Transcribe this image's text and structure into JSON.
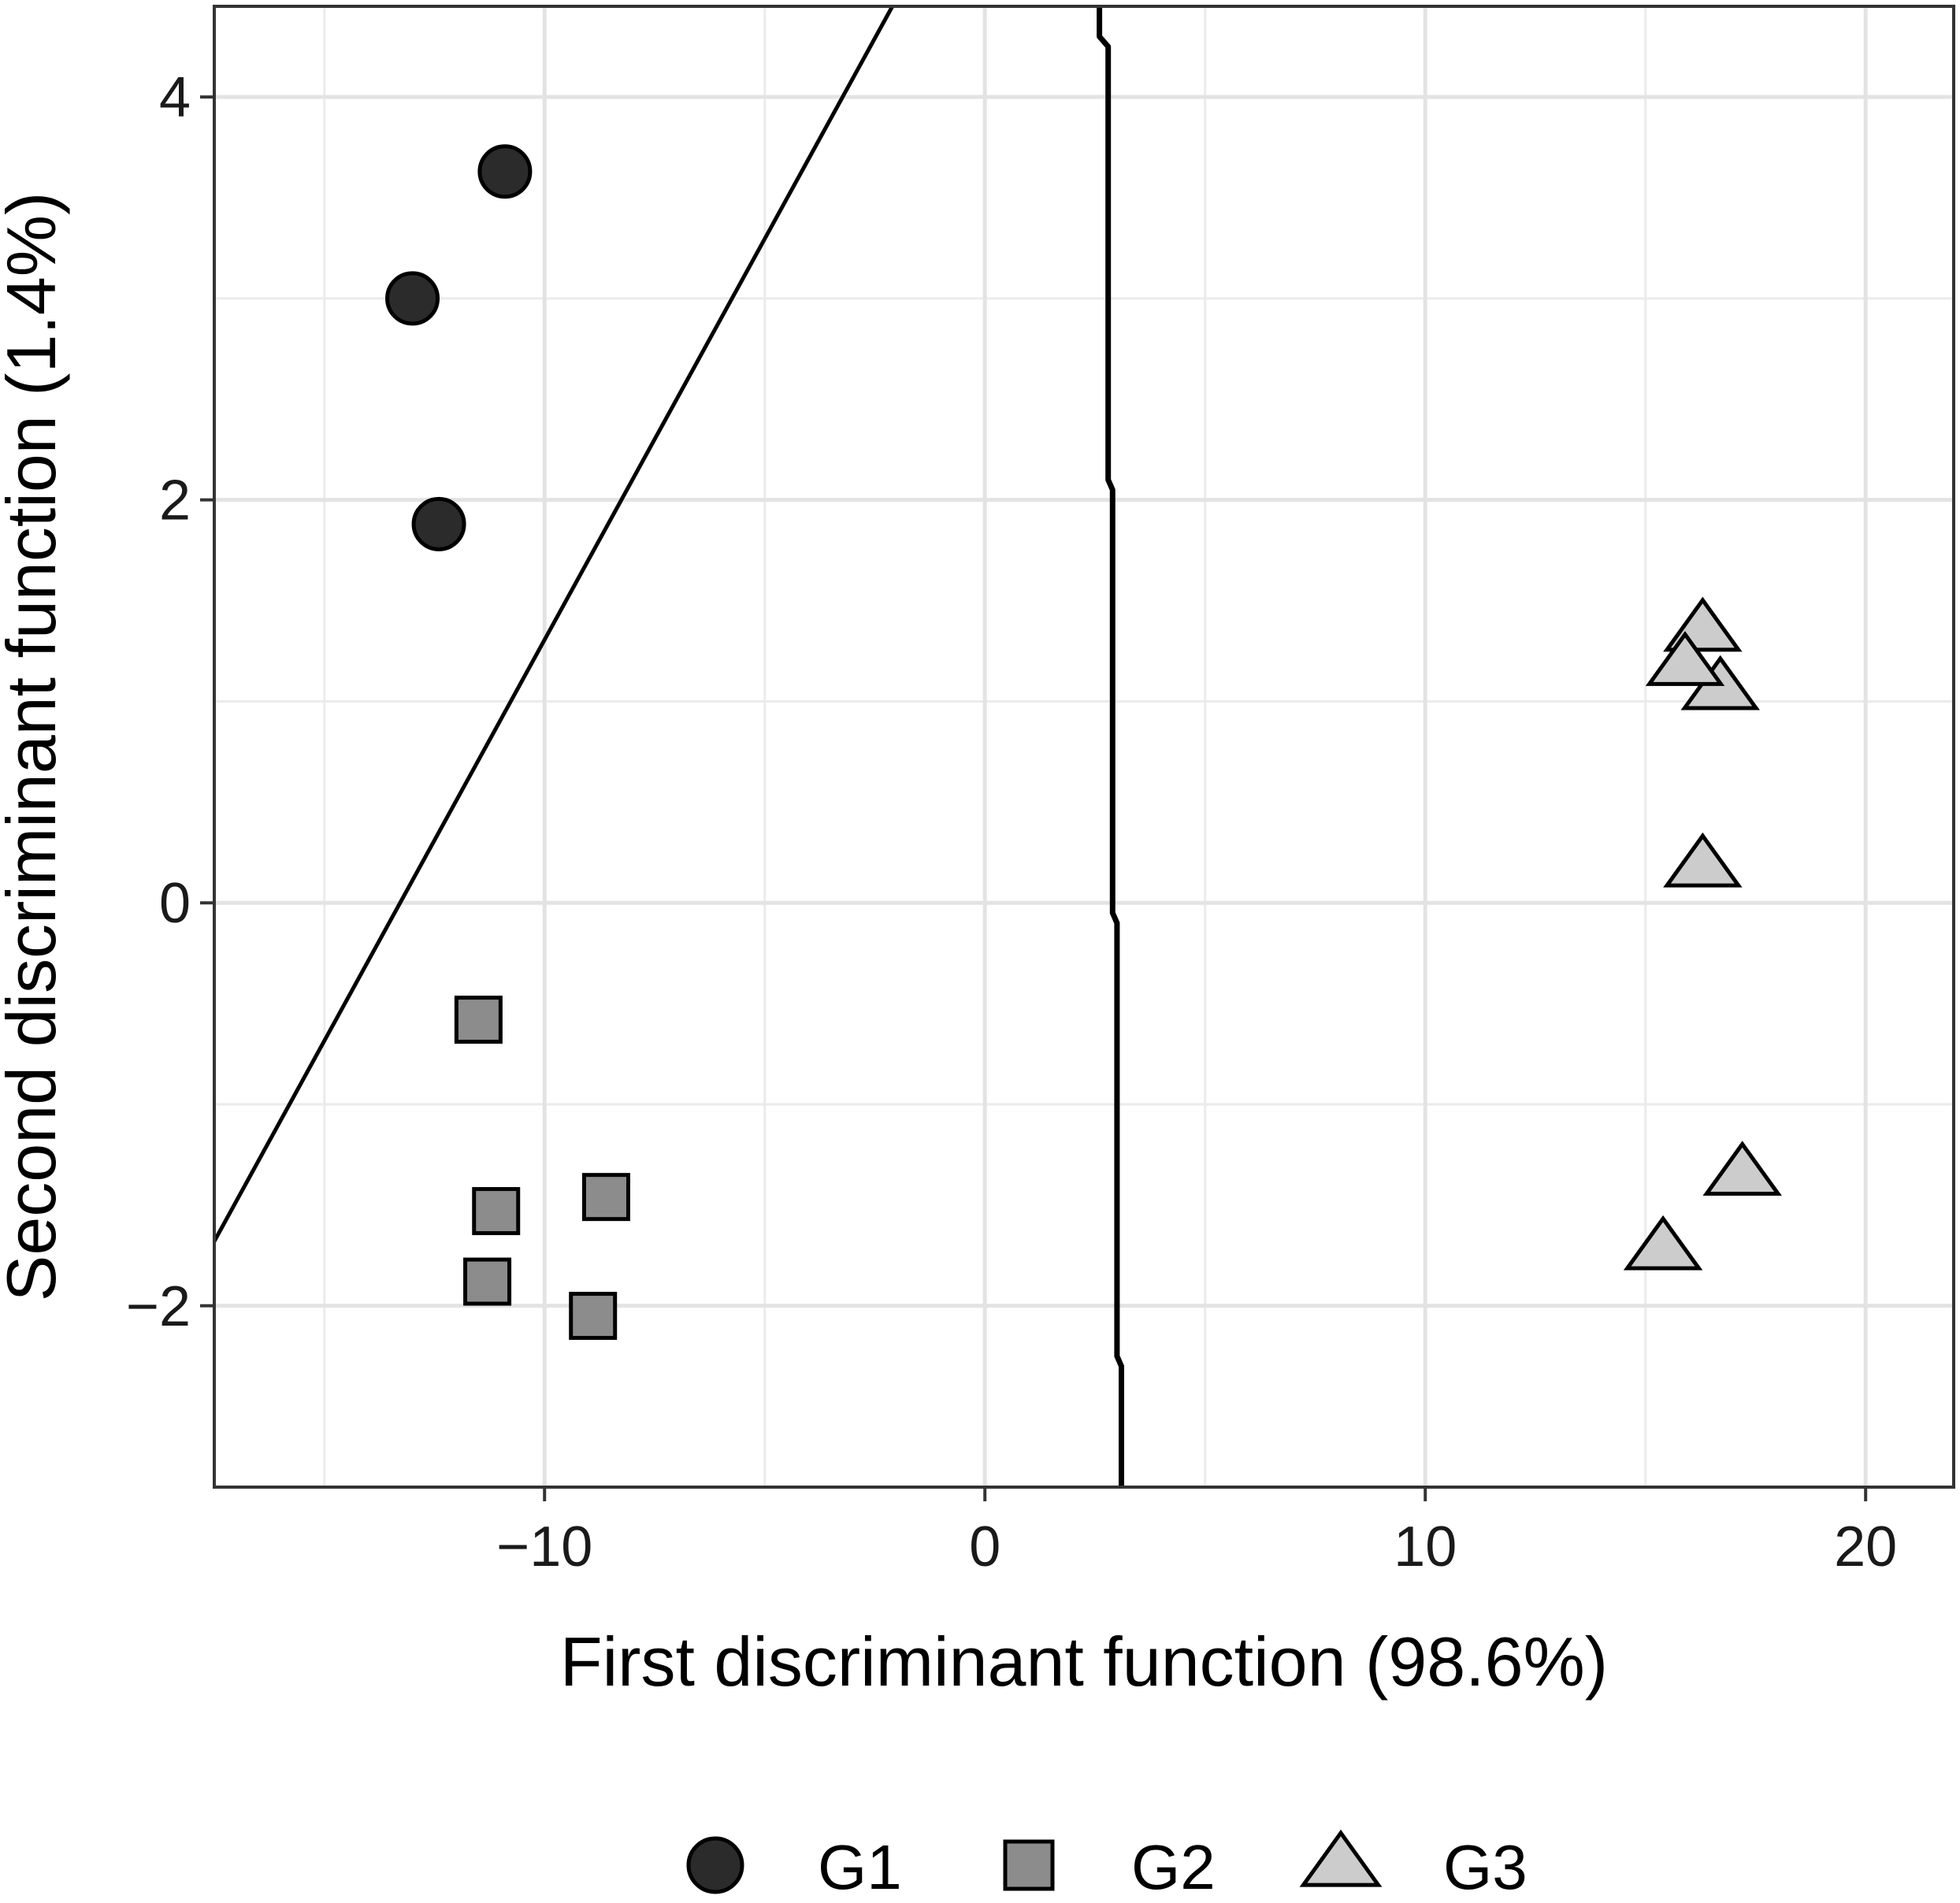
{
  "chart_data": {
    "type": "scatter",
    "title": "",
    "xlabel": "First discriminant function (98.6%)",
    "ylabel": "Second discriminant function (1.4%)",
    "xlim": [
      -17.5,
      22
    ],
    "ylim": [
      -2.9,
      4.45
    ],
    "x_ticks": [
      -10,
      0,
      10,
      20
    ],
    "y_ticks": [
      -2,
      0,
      2,
      4
    ],
    "x_tick_labels": [
      "−10",
      "0",
      "10",
      "20"
    ],
    "y_tick_labels": [
      "−2",
      "0",
      "2",
      "4"
    ],
    "x_minor_ticks": [
      -15,
      -5,
      5,
      15
    ],
    "y_minor_ticks": [
      -1,
      1,
      3
    ],
    "grid": true,
    "legend_position": "bottom",
    "series": [
      {
        "name": "G1",
        "shape": "circle",
        "color": "#2b2b2b",
        "points": [
          [
            -10.9,
            3.63
          ],
          [
            -13.0,
            3.0
          ],
          [
            -12.4,
            1.88
          ]
        ]
      },
      {
        "name": "G2",
        "shape": "square",
        "color": "#8c8c8c",
        "points": [
          [
            -11.5,
            -0.58
          ],
          [
            -11.1,
            -1.53
          ],
          [
            -8.6,
            -1.46
          ],
          [
            -11.3,
            -1.88
          ],
          [
            -8.9,
            -2.05
          ]
        ]
      },
      {
        "name": "G3",
        "shape": "triangle",
        "color": "#cccccc",
        "points": [
          [
            16.3,
            1.35
          ],
          [
            16.7,
            1.06
          ],
          [
            15.9,
            1.18
          ],
          [
            16.3,
            0.18
          ],
          [
            17.2,
            -1.35
          ],
          [
            15.4,
            -1.72
          ]
        ]
      }
    ],
    "boundaries": [
      {
        "kind": "diagonal",
        "points": [
          [
            -17.5,
            -1.68
          ],
          [
            -2.1,
            4.45
          ]
        ]
      },
      {
        "kind": "vertical",
        "points": [
          [
            2.6,
            4.45
          ],
          [
            2.6,
            4.3
          ],
          [
            2.8,
            4.25
          ],
          [
            2.8,
            2.1
          ],
          [
            2.9,
            2.05
          ],
          [
            2.9,
            -0.05
          ],
          [
            3.0,
            -0.1
          ],
          [
            3.0,
            -2.25
          ],
          [
            3.1,
            -2.3
          ],
          [
            3.1,
            -2.9
          ]
        ]
      }
    ]
  }
}
